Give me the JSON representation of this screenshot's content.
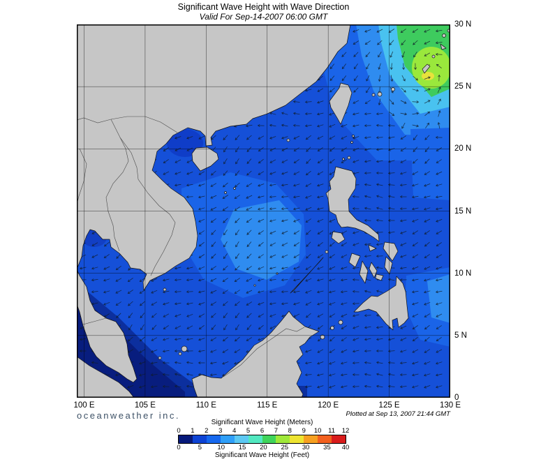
{
  "title": "Significant Wave Height with Wave Direction",
  "subtitle": "Valid For Sep-14-2007 06:00 GMT",
  "branding": {
    "text": "oceanweather inc."
  },
  "plotted": "Plotted at Sep 13, 2007 21:44 GMT",
  "axes": {
    "lat_labels": [
      "30 N",
      "25 N",
      "20 N",
      "15 N",
      "10 N",
      "5 N",
      "0"
    ],
    "lon_labels": [
      "100 E",
      "105 E",
      "110 E",
      "115 E",
      "120 E",
      "125 E",
      "130 E"
    ]
  },
  "legend": {
    "meters_label": "Significant Wave Height (Meters)",
    "feet_label": "Significant Wave Height (Feet)",
    "meter_ticks": [
      0,
      1,
      2,
      3,
      4,
      5,
      6,
      7,
      8,
      9,
      10,
      11,
      12
    ],
    "feet_ticks": [
      0,
      5,
      10,
      15,
      20,
      25,
      30,
      35,
      40
    ],
    "colors": [
      "#06197a",
      "#0d43d4",
      "#1668ee",
      "#2f9ff8",
      "#5cc8f2",
      "#52e8c0",
      "#3fd45a",
      "#9fe839",
      "#eee431",
      "#f6a020",
      "#f2601e",
      "#d91c1c"
    ]
  },
  "chart_data": {
    "type": "heatmap",
    "title": "Significant Wave Height with Wave Direction",
    "valid_for": "Sep-14-2007 06:00 GMT",
    "plotted_at": "Sep 13, 2007 21:44 GMT",
    "units_primary": "meters",
    "units_secondary": "feet",
    "lon_range_deg_e": [
      99.4,
      130
    ],
    "lat_range_deg_n": [
      0,
      30
    ],
    "lon_ticks_deg_e": [
      100,
      105,
      110,
      115,
      120,
      125,
      130
    ],
    "lat_ticks_deg_n": [
      0,
      5,
      10,
      15,
      20,
      25,
      30
    ],
    "colorbar": {
      "ticks_m": [
        0,
        1,
        2,
        3,
        4,
        5,
        6,
        7,
        8,
        9,
        10,
        11,
        12
      ],
      "ticks_ft": [
        0,
        5,
        10,
        15,
        20,
        25,
        30,
        35,
        40
      ],
      "colors": [
        "#06197a",
        "#0d43d4",
        "#1668ee",
        "#2f9ff8",
        "#5cc8f2",
        "#52e8c0",
        "#3fd45a",
        "#9fe839",
        "#eee431",
        "#f6a020",
        "#f2601e",
        "#d91c1c"
      ]
    },
    "arrow_meaning": "small arrows show wave direction over open water",
    "features": [
      {
        "area": "Philippine Sea near Ryukyu Islands (~26N, 127-129E)",
        "swh_m": "5-8",
        "detail": "storm peak shown by green-yellow core"
      },
      {
        "area": "Northeast quadrant east of Taiwan / Luzon Strait up to 30N",
        "swh_m": "2-5"
      },
      {
        "area": "Central South China Sea",
        "swh_m": "2-3"
      },
      {
        "area": "Most open water in region",
        "swh_m": "1-2"
      },
      {
        "area": "Malacca Strait, Java Sea margin and sheltered coastal waters",
        "swh_m": "0-1"
      }
    ]
  }
}
